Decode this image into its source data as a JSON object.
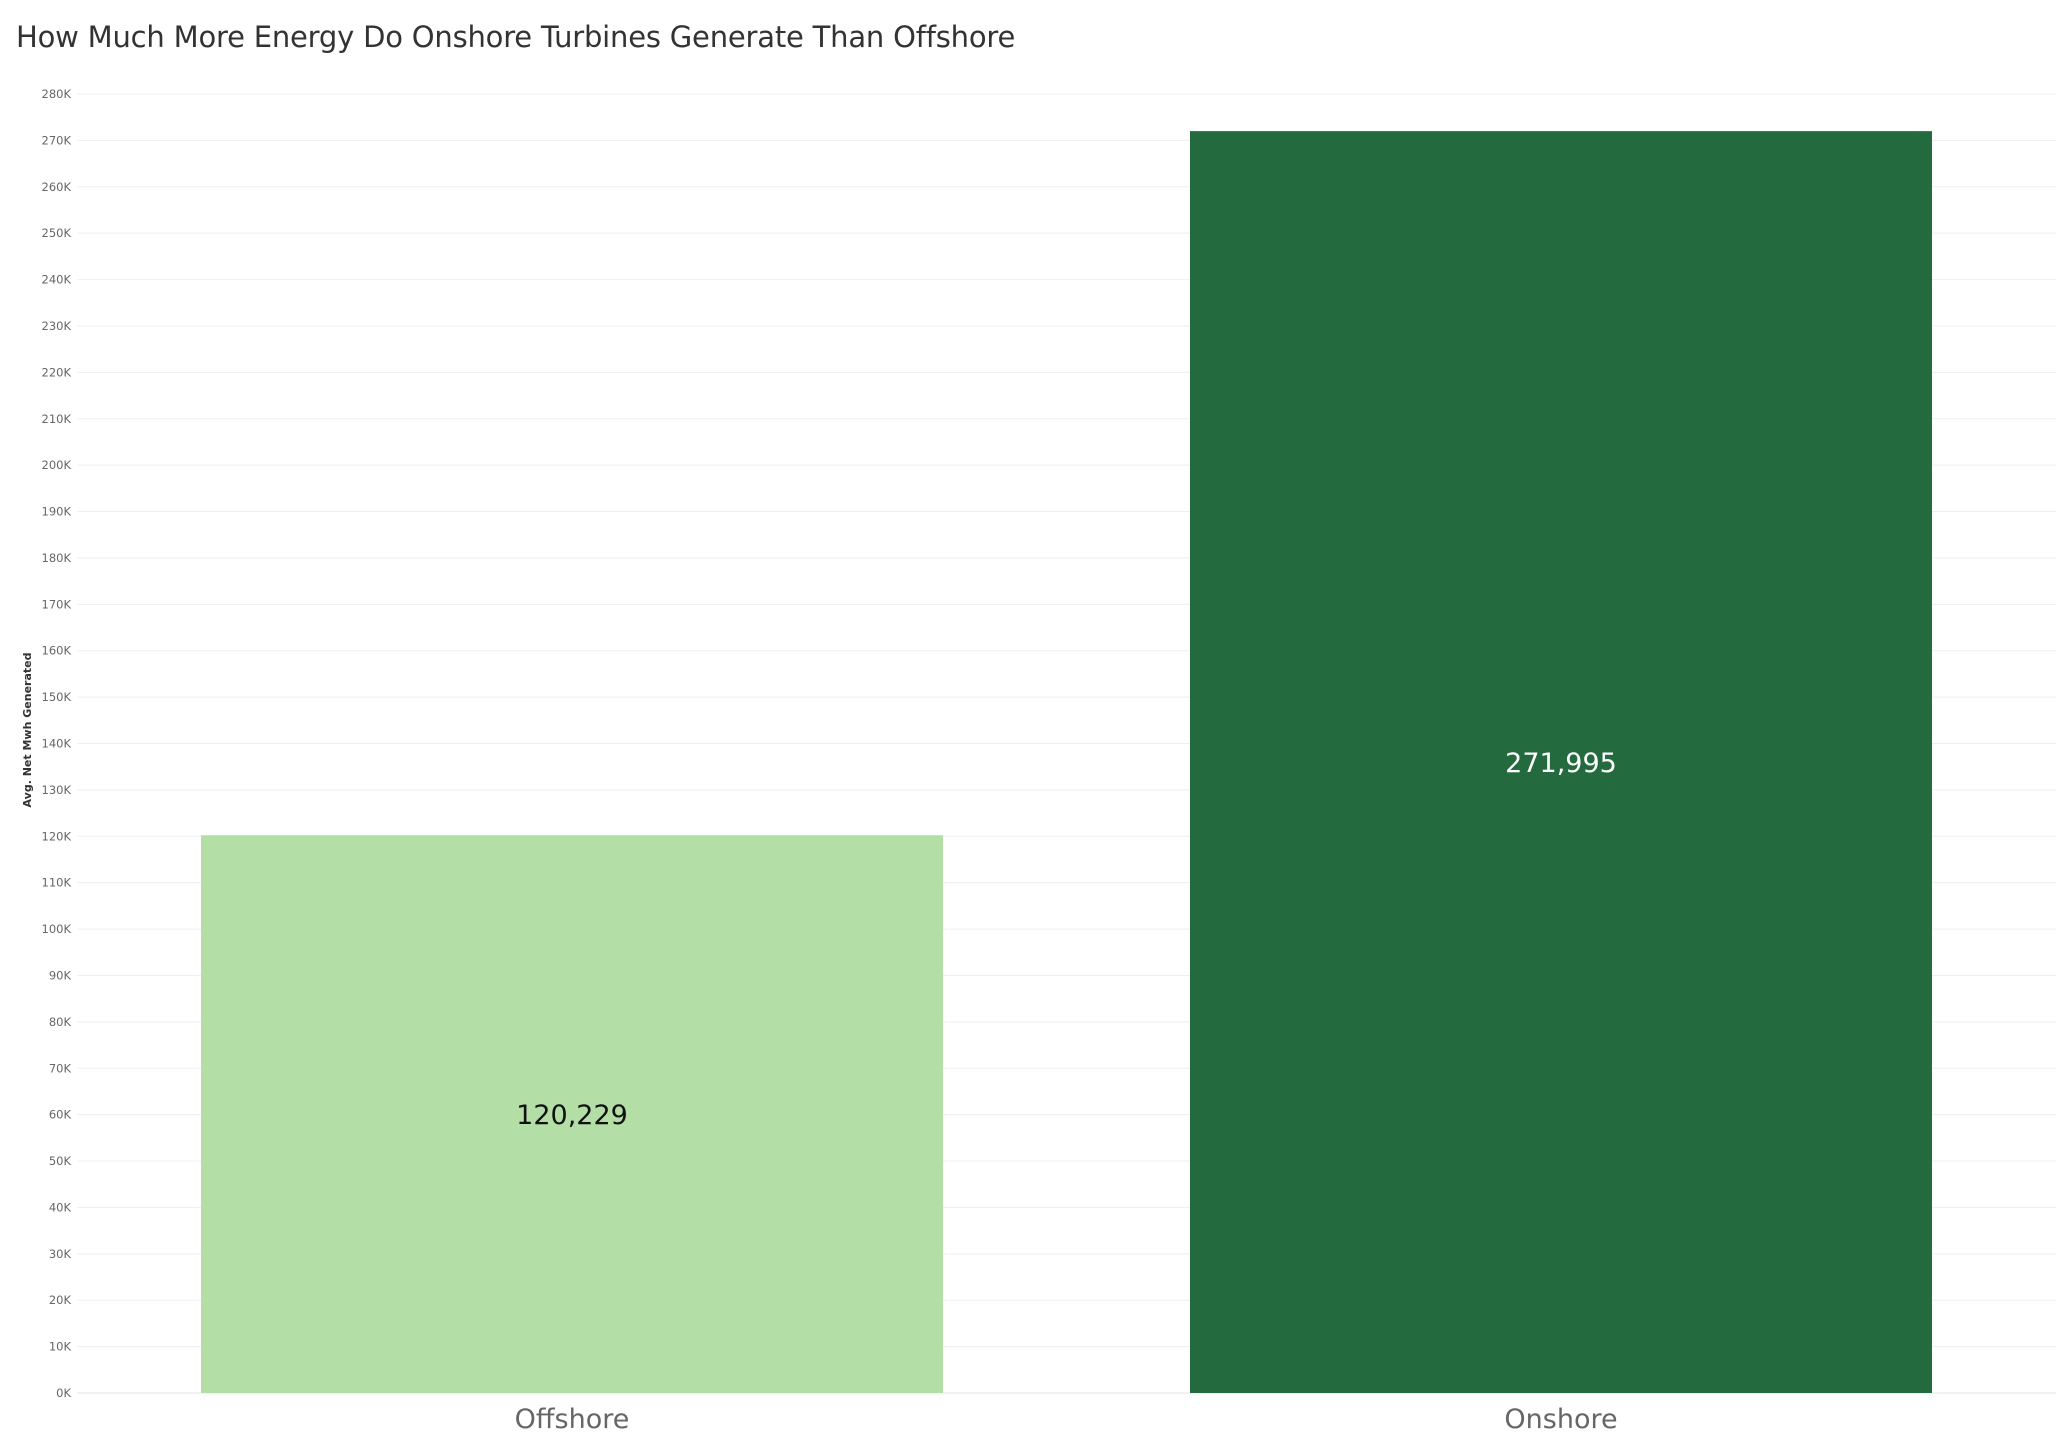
{
  "chart_data": {
    "type": "bar",
    "title": "How Much More Energy Do Onshore Turbines Generate Than Offshore",
    "xlabel": "",
    "ylabel": "Avg. Net Mwh Generated",
    "categories": [
      "Offshore",
      "Onshore"
    ],
    "values": [
      120229,
      271995
    ],
    "value_labels": [
      "120,229",
      "271,995"
    ],
    "bar_colors": [
      "#b3dfa6",
      "#246a3f"
    ],
    "data_label_colors": [
      "#111111",
      "#ffffff"
    ],
    "ylim": [
      0,
      280000
    ],
    "y_ticks": [
      0,
      10000,
      20000,
      30000,
      40000,
      50000,
      60000,
      70000,
      80000,
      90000,
      100000,
      110000,
      120000,
      130000,
      140000,
      150000,
      160000,
      170000,
      180000,
      190000,
      200000,
      210000,
      220000,
      230000,
      240000,
      250000,
      260000,
      270000,
      280000
    ],
    "y_tick_labels": [
      "0K",
      "10K",
      "20K",
      "30K",
      "40K",
      "50K",
      "60K",
      "70K",
      "80K",
      "90K",
      "100K",
      "110K",
      "120K",
      "130K",
      "140K",
      "150K",
      "160K",
      "170K",
      "180K",
      "190K",
      "200K",
      "210K",
      "220K",
      "230K",
      "240K",
      "250K",
      "260K",
      "270K",
      "280K"
    ],
    "grid": true,
    "legend": "none"
  }
}
